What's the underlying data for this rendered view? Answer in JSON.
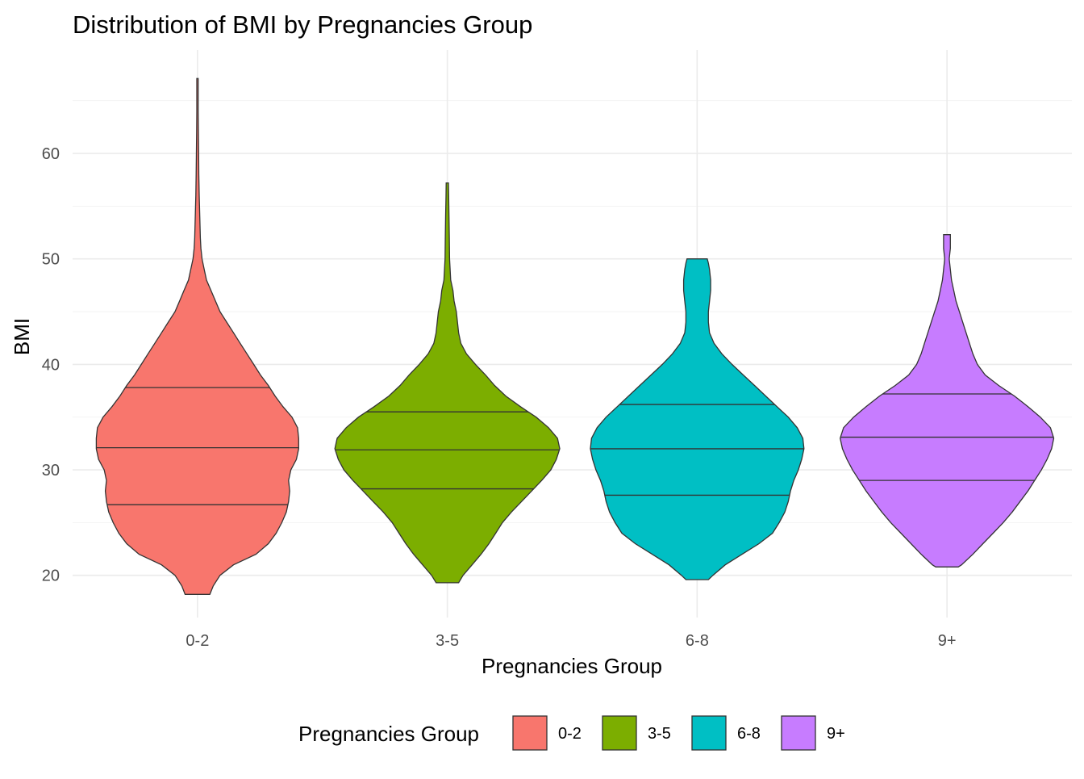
{
  "chart_data": {
    "type": "violin",
    "title": "Distribution of BMI by Pregnancies Group",
    "xlabel": "Pregnancies Group",
    "ylabel": "BMI",
    "categories": [
      "0-2",
      "3-5",
      "6-8",
      "9+"
    ],
    "ylim": [
      16.0,
      69.8
    ],
    "y_ticks": [
      20,
      30,
      40,
      50,
      60
    ],
    "grid": true,
    "legend": {
      "title": "Pregnancies Group",
      "position": "bottom",
      "entries": [
        "0-2",
        "3-5",
        "6-8",
        "9+"
      ]
    },
    "colors": [
      "#F8766D",
      "#7CAE00",
      "#00BFC4",
      "#C77CFF"
    ],
    "series": [
      {
        "category": "0-2",
        "min": 18.2,
        "max": 67.1,
        "quantiles": [
          26.7,
          32.1,
          37.8
        ],
        "density": [
          [
            18.2,
            0.11
          ],
          [
            19,
            0.14
          ],
          [
            20,
            0.2
          ],
          [
            21,
            0.32
          ],
          [
            22,
            0.52
          ],
          [
            23,
            0.63
          ],
          [
            24,
            0.7
          ],
          [
            25,
            0.75
          ],
          [
            26,
            0.79
          ],
          [
            27,
            0.81
          ],
          [
            28,
            0.82
          ],
          [
            29,
            0.81
          ],
          [
            30,
            0.83
          ],
          [
            31,
            0.88
          ],
          [
            32,
            0.9
          ],
          [
            33,
            0.9
          ],
          [
            34,
            0.89
          ],
          [
            35,
            0.84
          ],
          [
            36,
            0.76
          ],
          [
            37,
            0.69
          ],
          [
            38,
            0.63
          ],
          [
            39,
            0.56
          ],
          [
            40,
            0.5
          ],
          [
            41,
            0.44
          ],
          [
            42,
            0.38
          ],
          [
            43,
            0.32
          ],
          [
            44,
            0.26
          ],
          [
            45,
            0.2
          ],
          [
            46,
            0.16
          ],
          [
            47,
            0.12
          ],
          [
            48,
            0.08
          ],
          [
            49,
            0.06
          ],
          [
            50,
            0.04
          ],
          [
            51,
            0.03
          ],
          [
            52,
            0.025
          ],
          [
            54,
            0.02
          ],
          [
            56,
            0.015
          ],
          [
            58,
            0.012
          ],
          [
            60,
            0.01
          ],
          [
            62,
            0.008
          ],
          [
            64,
            0.006
          ],
          [
            66,
            0.006
          ],
          [
            67.1,
            0.006
          ]
        ]
      },
      {
        "category": "3-5",
        "min": 19.3,
        "max": 57.2,
        "quantiles": [
          28.2,
          31.9,
          35.5
        ],
        "density": [
          [
            19.3,
            0.1
          ],
          [
            20,
            0.14
          ],
          [
            21,
            0.22
          ],
          [
            22,
            0.3
          ],
          [
            23,
            0.37
          ],
          [
            24,
            0.43
          ],
          [
            25,
            0.49
          ],
          [
            26,
            0.57
          ],
          [
            27,
            0.66
          ],
          [
            28,
            0.75
          ],
          [
            29,
            0.84
          ],
          [
            30,
            0.92
          ],
          [
            31,
            0.97
          ],
          [
            32,
            1.0
          ],
          [
            33,
            0.98
          ],
          [
            34,
            0.9
          ],
          [
            35,
            0.79
          ],
          [
            36,
            0.65
          ],
          [
            37,
            0.52
          ],
          [
            38,
            0.42
          ],
          [
            39,
            0.34
          ],
          [
            40,
            0.25
          ],
          [
            41,
            0.17
          ],
          [
            42,
            0.12
          ],
          [
            43,
            0.1
          ],
          [
            44,
            0.09
          ],
          [
            45,
            0.08
          ],
          [
            46,
            0.06
          ],
          [
            47,
            0.05
          ],
          [
            48,
            0.03
          ],
          [
            49,
            0.025
          ],
          [
            50,
            0.02
          ],
          [
            52,
            0.018
          ],
          [
            54,
            0.015
          ],
          [
            56,
            0.012
          ],
          [
            57.2,
            0.01
          ]
        ]
      },
      {
        "category": "6-8",
        "min": 19.6,
        "max": 50.0,
        "quantiles": [
          27.6,
          32.0,
          36.2
        ],
        "density": [
          [
            19.6,
            0.1
          ],
          [
            20,
            0.14
          ],
          [
            21,
            0.25
          ],
          [
            22,
            0.4
          ],
          [
            23,
            0.55
          ],
          [
            24,
            0.67
          ],
          [
            25,
            0.73
          ],
          [
            26,
            0.78
          ],
          [
            27,
            0.81
          ],
          [
            28,
            0.83
          ],
          [
            29,
            0.86
          ],
          [
            30,
            0.9
          ],
          [
            31,
            0.93
          ],
          [
            32,
            0.95
          ],
          [
            33,
            0.94
          ],
          [
            34,
            0.89
          ],
          [
            35,
            0.81
          ],
          [
            36,
            0.71
          ],
          [
            37,
            0.61
          ],
          [
            38,
            0.51
          ],
          [
            39,
            0.41
          ],
          [
            40,
            0.31
          ],
          [
            41,
            0.22
          ],
          [
            42,
            0.15
          ],
          [
            43,
            0.11
          ],
          [
            44,
            0.1
          ],
          [
            45,
            0.1
          ],
          [
            46,
            0.11
          ],
          [
            47,
            0.12
          ],
          [
            48,
            0.12
          ],
          [
            49,
            0.11
          ],
          [
            49.6,
            0.1
          ],
          [
            50,
            0.09
          ]
        ]
      },
      {
        "category": "9+",
        "min": 20.8,
        "max": 52.3,
        "quantiles": [
          29.0,
          33.1,
          37.2
        ],
        "density": [
          [
            20.8,
            0.1
          ],
          [
            21,
            0.13
          ],
          [
            22,
            0.23
          ],
          [
            23,
            0.32
          ],
          [
            24,
            0.41
          ],
          [
            25,
            0.5
          ],
          [
            26,
            0.58
          ],
          [
            27,
            0.65
          ],
          [
            28,
            0.72
          ],
          [
            29,
            0.78
          ],
          [
            30,
            0.84
          ],
          [
            31,
            0.89
          ],
          [
            32,
            0.93
          ],
          [
            33,
            0.95
          ],
          [
            34,
            0.92
          ],
          [
            35,
            0.83
          ],
          [
            36,
            0.72
          ],
          [
            37,
            0.6
          ],
          [
            38,
            0.46
          ],
          [
            39,
            0.34
          ],
          [
            40,
            0.27
          ],
          [
            41,
            0.23
          ],
          [
            42,
            0.2
          ],
          [
            43,
            0.17
          ],
          [
            44,
            0.14
          ],
          [
            45,
            0.11
          ],
          [
            46,
            0.08
          ],
          [
            47,
            0.06
          ],
          [
            48,
            0.04
          ],
          [
            49,
            0.03
          ],
          [
            50,
            0.02
          ],
          [
            51,
            0.03
          ],
          [
            52,
            0.03
          ],
          [
            52.3,
            0.03
          ]
        ]
      }
    ]
  }
}
